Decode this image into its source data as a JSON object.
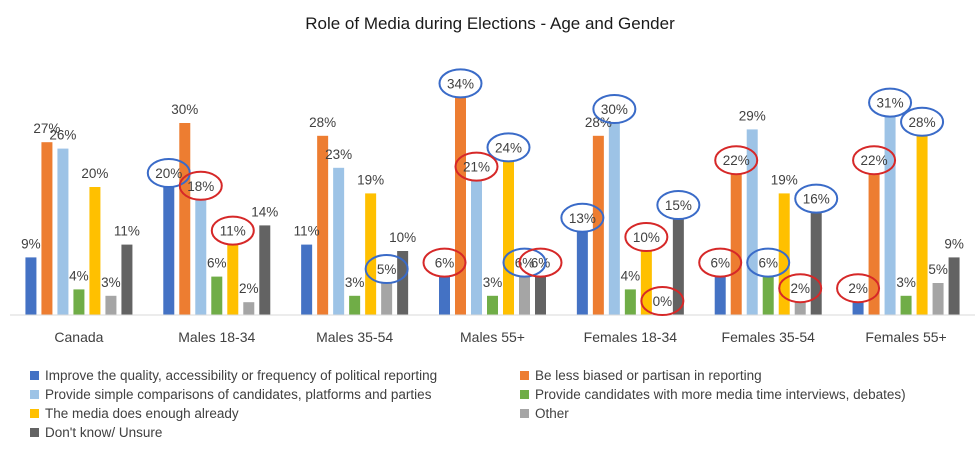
{
  "chart_data": {
    "type": "bar",
    "title": "Role of Media during Elections - Age and Gender",
    "categories": [
      "Canada",
      "Males 18-34",
      "Males 35-54",
      "Males 55+",
      "Females 18-34",
      "Females 35-54",
      "Females 55+"
    ],
    "ylim": [
      0,
      36
    ],
    "grid": false,
    "legend_position": "bottom",
    "series": [
      {
        "name": "Improve the quality, accessibility or frequency of political reporting",
        "color": "#4472C4",
        "values": [
          9,
          20,
          11,
          6,
          13,
          6,
          2
        ],
        "labels": [
          "9%",
          "20%",
          "11%",
          "6%",
          "13%",
          "6%",
          "2%"
        ]
      },
      {
        "name": "Be less biased or partisan in reporting",
        "color": "#ED7D31",
        "values": [
          27,
          30,
          28,
          34,
          28,
          22,
          22
        ],
        "labels": [
          "27%",
          "30%",
          "28%",
          "34%",
          "28%",
          "22%",
          "22%"
        ]
      },
      {
        "name": "Provide simple comparisons of candidates, platforms and parties",
        "color": "#9DC3E6",
        "values": [
          26,
          18,
          23,
          21,
          30,
          29,
          31
        ],
        "labels": [
          "26%",
          "18%",
          "23%",
          "21%",
          "30%",
          "29%",
          "31%"
        ]
      },
      {
        "name": "Provide candidates with more media time interviews, debates)",
        "color": "#70AD47",
        "values": [
          4,
          6,
          3,
          3,
          4,
          6,
          3
        ],
        "labels": [
          "4%",
          "6%",
          "3%",
          "3%",
          "4%",
          "6%",
          "3%"
        ]
      },
      {
        "name": "The media does enough already",
        "color": "#FFC000",
        "values": [
          20,
          11,
          19,
          24,
          10,
          19,
          28
        ],
        "labels": [
          "20%",
          "11%",
          "19%",
          "24%",
          "10%",
          "19%",
          "28%"
        ]
      },
      {
        "name": "Other",
        "color": "#A5A5A5",
        "values": [
          3,
          2,
          5,
          6,
          0,
          2,
          5
        ],
        "labels": [
          "3%",
          "2%",
          "5%",
          "6%",
          "0%",
          "2%",
          "5%"
        ]
      },
      {
        "name": "Don't know/ Unsure",
        "color": "#636363",
        "values": [
          11,
          14,
          10,
          6,
          15,
          16,
          9
        ],
        "labels": [
          "11%",
          "14%",
          "10%",
          "6%",
          "15%",
          "16%",
          "9%"
        ]
      }
    ],
    "annotations": {
      "blue_circles": [
        [
          1,
          0
        ],
        [
          2,
          5
        ],
        [
          3,
          1
        ],
        [
          3,
          4
        ],
        [
          3,
          5
        ],
        [
          4,
          0
        ],
        [
          4,
          2
        ],
        [
          4,
          6
        ],
        [
          5,
          3
        ],
        [
          5,
          6
        ],
        [
          6,
          2
        ],
        [
          6,
          4
        ]
      ],
      "red_circles": [
        [
          1,
          2
        ],
        [
          1,
          4
        ],
        [
          3,
          0
        ],
        [
          3,
          2
        ],
        [
          3,
          6
        ],
        [
          4,
          4
        ],
        [
          4,
          5
        ],
        [
          5,
          0
        ],
        [
          5,
          1
        ],
        [
          5,
          5
        ],
        [
          6,
          0
        ],
        [
          6,
          1
        ]
      ],
      "blue_color": "#3A6BC8",
      "red_color": "#D62828"
    }
  }
}
